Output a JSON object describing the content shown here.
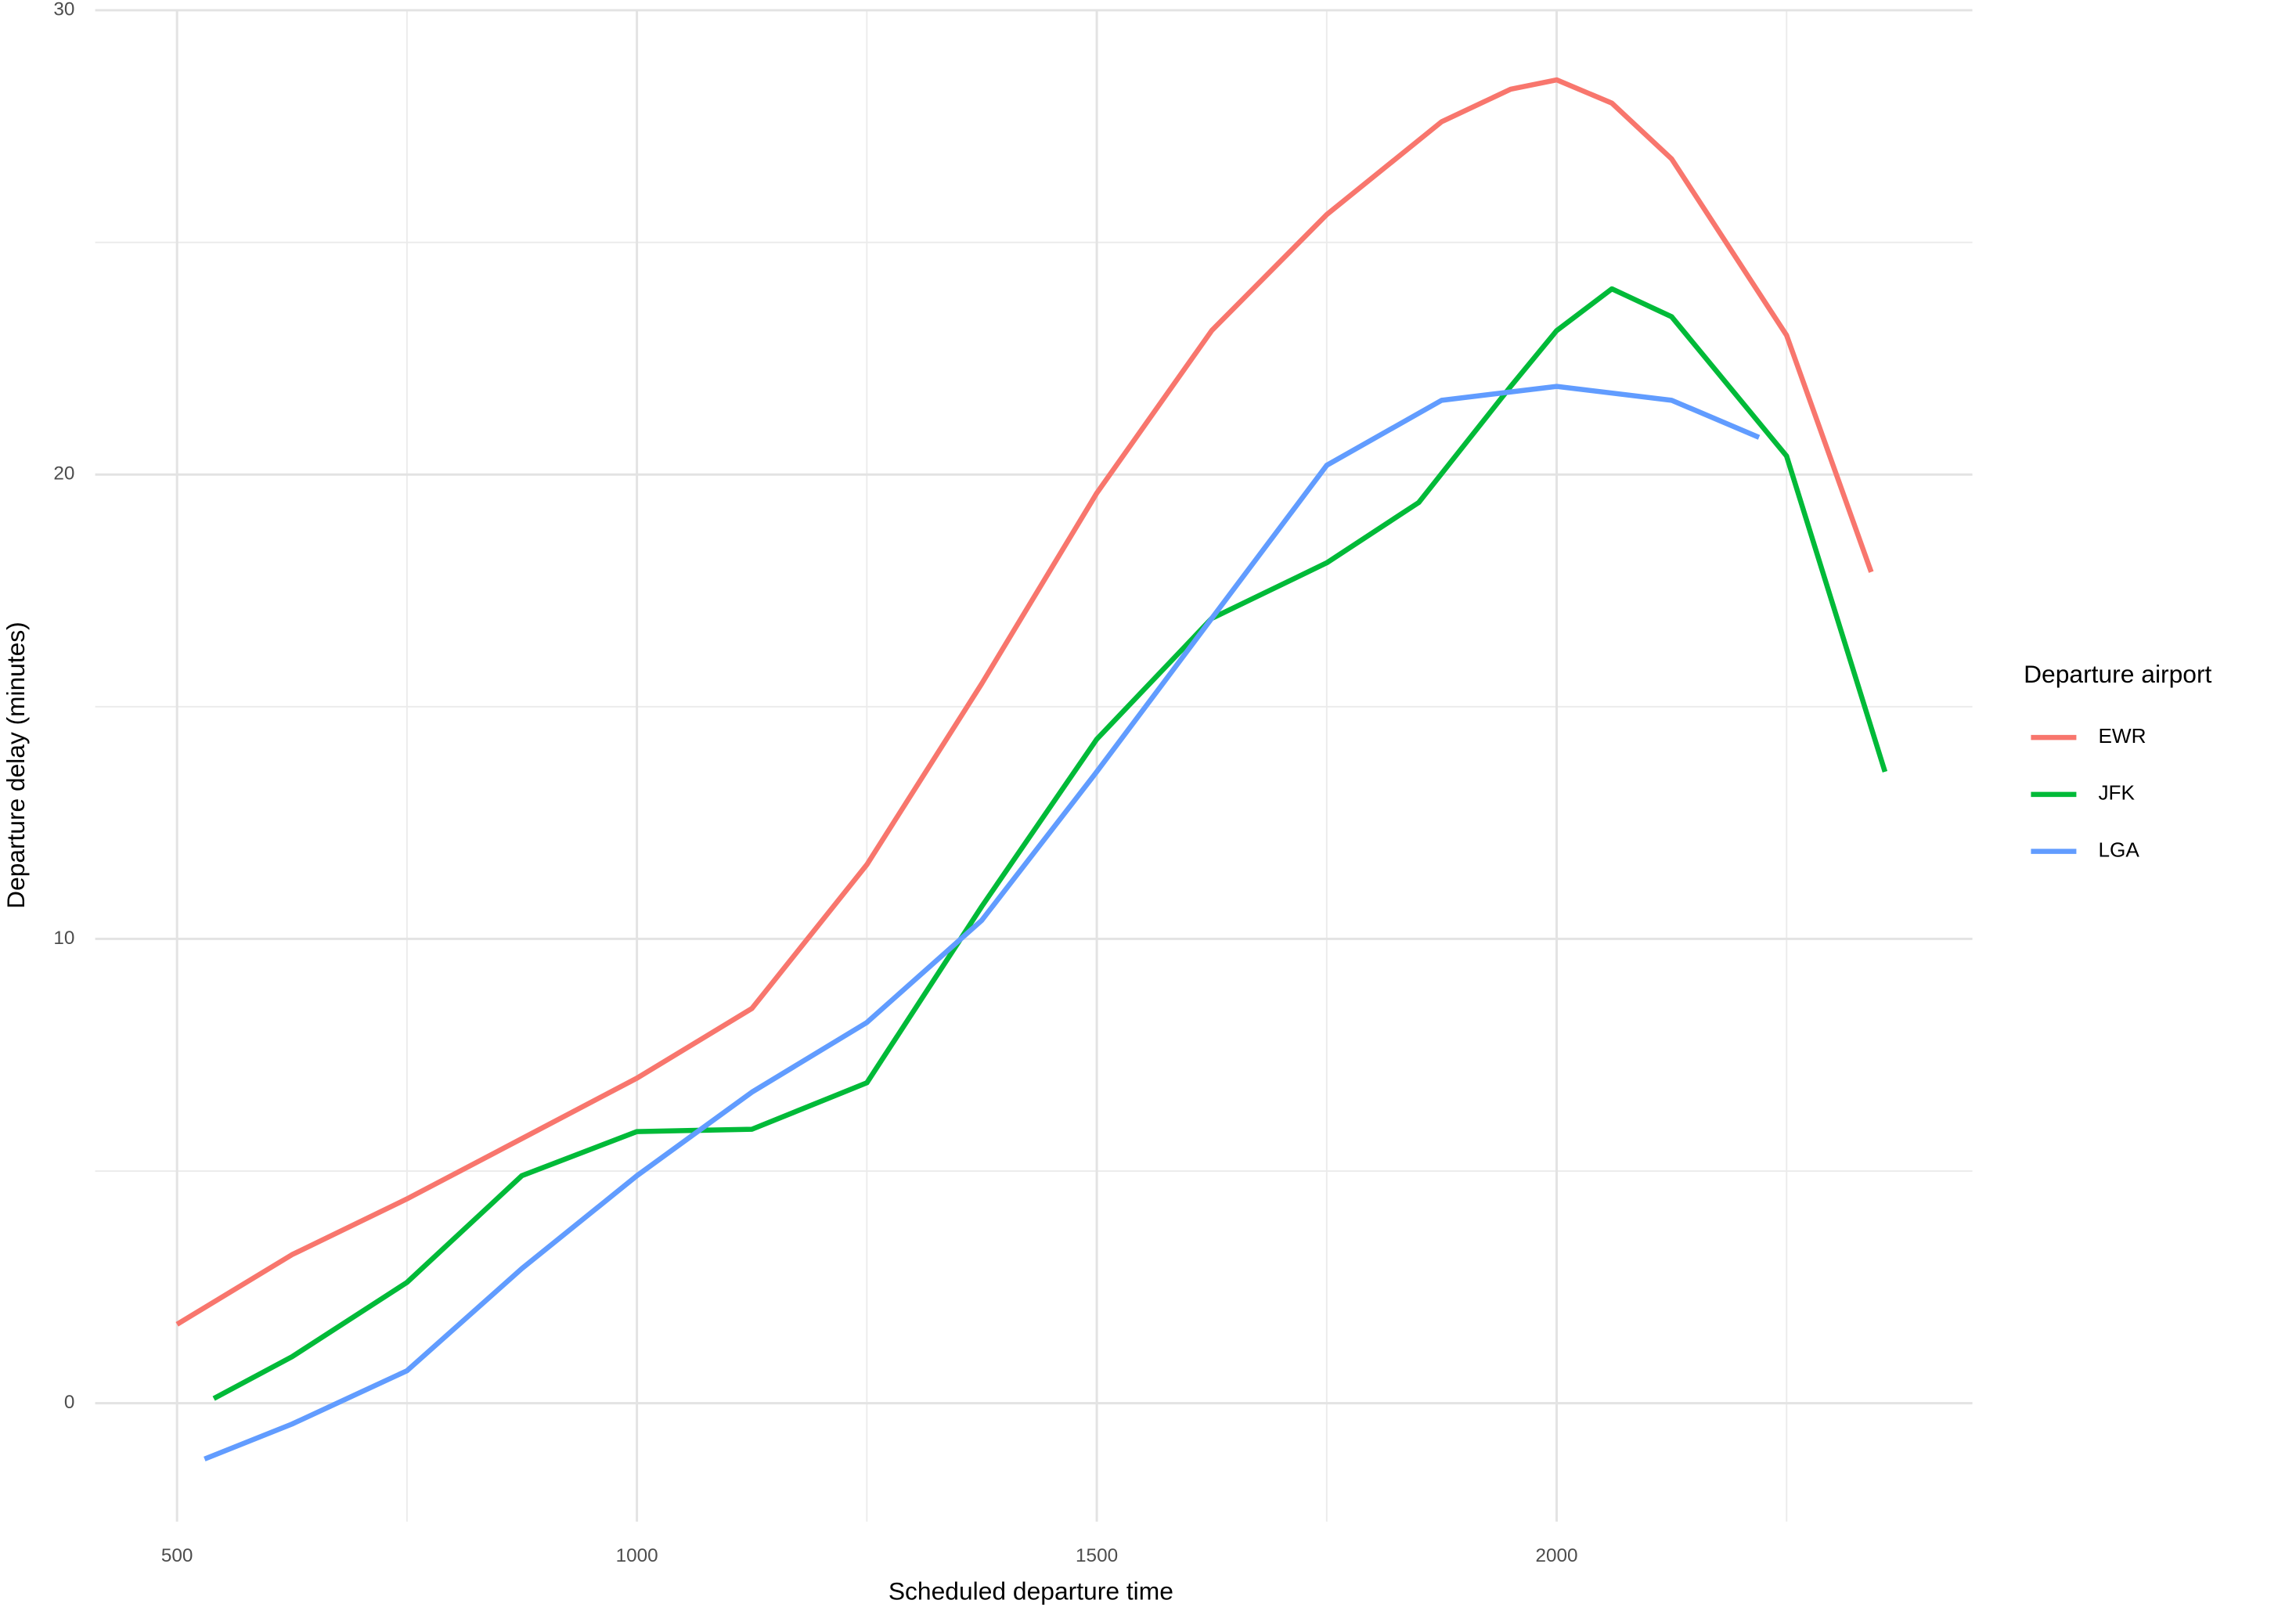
{
  "chart_data": {
    "type": "line",
    "x_label": "Scheduled departure time",
    "y_label": "Departure delay (minutes)",
    "legend_title": "Departure airport",
    "legend_position": "right",
    "grid": true,
    "xlim": [
      411,
      2452
    ],
    "ylim": [
      -2.55,
      30
    ],
    "xticks": [
      500,
      1000,
      1500,
      2000
    ],
    "yticks": [
      0,
      10,
      20,
      30
    ],
    "xminorticks": [
      750,
      1250,
      1750,
      2250
    ],
    "yminorticks": [
      5,
      15,
      25
    ],
    "series": [
      {
        "name": "EWR",
        "color": "#F8766D",
        "x": [
          500,
          625,
          750,
          875,
          1000,
          1125,
          1250,
          1375,
          1500,
          1625,
          1750,
          1875,
          1950,
          2000,
          2060,
          2125,
          2250,
          2342
        ],
        "values": [
          1.7,
          3.2,
          4.4,
          5.7,
          7.0,
          8.5,
          11.6,
          15.5,
          19.6,
          23.1,
          25.6,
          27.6,
          28.3,
          28.5,
          28.0,
          26.8,
          23.0,
          17.9
        ]
      },
      {
        "name": "JFK",
        "color": "#00BA38",
        "x": [
          540,
          625,
          750,
          875,
          1000,
          1125,
          1250,
          1375,
          1500,
          1625,
          1750,
          1850,
          1950,
          2000,
          2060,
          2125,
          2250,
          2357
        ],
        "values": [
          0.1,
          1.0,
          2.6,
          4.9,
          5.85,
          5.9,
          6.9,
          10.7,
          14.3,
          16.9,
          18.1,
          19.4,
          21.9,
          23.1,
          24.0,
          23.4,
          20.4,
          13.6
        ]
      },
      {
        "name": "LGA",
        "color": "#619CFF",
        "x": [
          530,
          625,
          750,
          875,
          1000,
          1125,
          1250,
          1375,
          1500,
          1625,
          1750,
          1875,
          2000,
          2125,
          2220
        ],
        "values": [
          -1.2,
          -0.45,
          0.7,
          2.9,
          4.9,
          6.7,
          8.2,
          10.4,
          13.6,
          16.9,
          20.2,
          21.6,
          21.9,
          21.6,
          20.8
        ]
      }
    ]
  }
}
